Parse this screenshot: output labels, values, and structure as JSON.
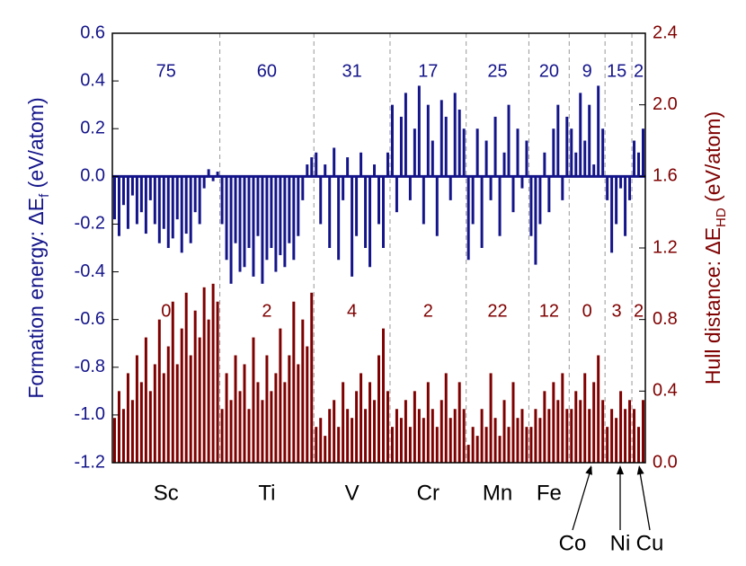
{
  "chart_data": {
    "type": "bar",
    "ylabel": {
      "main": "Formation energy: ΔE",
      "sub": "f",
      "unit": " (eV/atom)"
    },
    "y2label": {
      "main": "Hull distance: ΔE",
      "sub": "HD",
      "unit": " (eV/atom)"
    },
    "xlim": [
      0,
      119
    ],
    "ylim": [
      -1.2,
      0.6
    ],
    "yticks": [
      0.6,
      0.4,
      0.2,
      {
        "value": 0,
        "label": "0.0"
      },
      -0.2,
      -0.4,
      -0.6,
      -0.8,
      {
        "value": -1,
        "label": "-1.0"
      },
      -1.2
    ],
    "y2lim": [
      0,
      2.4
    ],
    "y2ticks": [
      {
        "value": 0,
        "label": "0.0"
      },
      0.4,
      0.8,
      1.2,
      1.6,
      {
        "value": 2,
        "label": "2.0"
      },
      2.4
    ],
    "groups": [
      {
        "label": "Sc",
        "start": 0,
        "end": 24,
        "formation_count": 75,
        "hull_count": 0
      },
      {
        "label": "Ti",
        "start": 24,
        "end": 45,
        "formation_count": 60,
        "hull_count": 2
      },
      {
        "label": "V",
        "start": 45,
        "end": 62,
        "formation_count": 31,
        "hull_count": 4
      },
      {
        "label": "Cr",
        "start": 62,
        "end": 79,
        "formation_count": 17,
        "hull_count": 2
      },
      {
        "label": "Mn",
        "start": 79,
        "end": 93,
        "formation_count": 25,
        "hull_count": 22
      },
      {
        "label": "Fe",
        "start": 93,
        "end": 102,
        "formation_count": 20,
        "hull_count": 12
      },
      {
        "label": "Co",
        "start": 102,
        "end": 110,
        "formation_count": 9,
        "hull_count": 0
      },
      {
        "label": "Ni",
        "start": 110,
        "end": 116,
        "formation_count": 15,
        "hull_count": 3
      },
      {
        "label": "Cu",
        "start": 116,
        "end": 119,
        "formation_count": 2,
        "hull_count": 2
      }
    ],
    "series": [
      {
        "color": "#14148a",
        "values": [
          -0.18,
          -0.25,
          -0.12,
          -0.22,
          -0.08,
          -0.2,
          -0.15,
          -0.24,
          -0.1,
          -0.2,
          -0.28,
          -0.22,
          -0.3,
          -0.26,
          -0.18,
          -0.32,
          -0.24,
          -0.28,
          -0.15,
          -0.2,
          -0.05,
          0.03,
          -0.02,
          0.02,
          -0.2,
          -0.35,
          -0.45,
          -0.28,
          -0.4,
          -0.38,
          -0.3,
          -0.42,
          -0.25,
          -0.45,
          -0.35,
          -0.3,
          -0.4,
          -0.33,
          -0.38,
          -0.28,
          -0.35,
          -0.25,
          -0.1,
          0.05,
          0.08,
          0.1,
          -0.2,
          0.05,
          -0.3,
          0.12,
          -0.35,
          -0.1,
          0.08,
          -0.42,
          -0.25,
          0.1,
          -0.3,
          -0.38,
          0.05,
          -0.2,
          -0.3,
          0.1,
          0.3,
          -0.15,
          0.25,
          0.35,
          -0.1,
          0.2,
          0.38,
          -0.2,
          0.3,
          0.15,
          -0.25,
          0.32,
          0.25,
          -0.1,
          0.35,
          0.28,
          0.2,
          -0.35,
          -0.2,
          0.2,
          -0.3,
          0.15,
          -0.1,
          0.25,
          -0.25,
          0.1,
          0.3,
          -0.15,
          0.2,
          -0.05,
          0.15,
          -0.25,
          -0.37,
          -0.2,
          0.1,
          -0.15,
          0.2,
          0.3,
          -0.1,
          0.25,
          0.2,
          0.1,
          0.35,
          0.15,
          0.3,
          0.05,
          0.38,
          0.2,
          -0.1,
          -0.32,
          -0.2,
          -0.05,
          -0.25,
          -0.1,
          0.15,
          0.1,
          0.2
        ]
      },
      {
        "color": "#7f0000",
        "axis": "y2",
        "values": [
          0.25,
          0.4,
          0.3,
          0.5,
          0.35,
          0.6,
          0.45,
          0.7,
          0.4,
          0.55,
          0.8,
          0.5,
          0.65,
          0.9,
          0.55,
          0.75,
          0.95,
          0.6,
          0.85,
          0.7,
          0.98,
          0.8,
          1.0,
          0.9,
          0.3,
          0.5,
          0.35,
          0.6,
          0.4,
          0.55,
          0.3,
          0.7,
          0.45,
          0.35,
          0.6,
          0.4,
          0.5,
          0.75,
          0.45,
          0.6,
          0.9,
          0.55,
          0.8,
          0.65,
          0.95,
          0.2,
          0.25,
          0.15,
          0.3,
          0.35,
          0.2,
          0.45,
          0.3,
          0.25,
          0.4,
          0.5,
          0.3,
          0.45,
          0.35,
          0.6,
          0.75,
          0.4,
          0.2,
          0.3,
          0.25,
          0.35,
          0.2,
          0.4,
          0.3,
          0.25,
          0.45,
          0.3,
          0.2,
          0.35,
          0.5,
          0.25,
          0.3,
          0.45,
          0.3,
          0.1,
          0.2,
          0.15,
          0.3,
          0.2,
          0.5,
          0.25,
          0.15,
          0.35,
          0.2,
          0.45,
          0.25,
          0.3,
          0.2,
          0.2,
          0.3,
          0.25,
          0.4,
          0.3,
          0.45,
          0.35,
          0.5,
          0.3,
          0.3,
          0.4,
          0.35,
          0.5,
          0.3,
          0.45,
          0.6,
          0.35,
          0.2,
          0.3,
          0.25,
          0.4,
          0.3,
          0.35,
          0.3,
          0.2,
          0.35
        ]
      }
    ]
  }
}
